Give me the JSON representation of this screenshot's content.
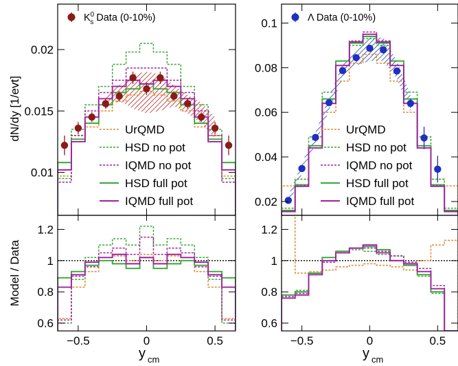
{
  "figure": {
    "ylabel_top": "dN/dy [1/evt]",
    "ylabel_bottom": "Model / Data",
    "xlabel_main": "y",
    "xlabel_sub": "cm",
    "colors": {
      "data_k0s": "#8b1a1a",
      "data_lambda": "#1f2fbf",
      "band_k0s": "#b22222",
      "band_lambda": "#1f3fa8",
      "urqmd": "#e08a2c",
      "hsd": "#35a835",
      "iqmd": "#a020a0"
    }
  },
  "legend": {
    "entries": [
      {
        "key": "urqmd",
        "label": "UrQMD",
        "dashed": true
      },
      {
        "key": "hsd_nopot",
        "label": "HSD no pot",
        "dashed": true
      },
      {
        "key": "iqmd_nopot",
        "label": "IQMD no pot",
        "dashed": true
      },
      {
        "key": "hsd_full",
        "label": "HSD full pot",
        "dashed": false
      },
      {
        "key": "iqmd_full",
        "label": "IQMD full pot",
        "dashed": false
      }
    ]
  },
  "chart_data": [
    {
      "type": "line",
      "panel": "K0s spectrum",
      "data_label_pre": "K",
      "data_label_sup": "0",
      "data_label_sub": "s",
      "data_label_post": " Data (0-10%)",
      "xlim": [
        -0.65,
        0.65
      ],
      "ylim": [
        0.0065,
        0.0237
      ],
      "ymax_drawn": 0.0237,
      "yticks": [
        0.01,
        0.015,
        0.02
      ],
      "ytick_labels": [
        "0.01",
        "0.015",
        "0.02"
      ],
      "xticks": [
        -0.5,
        0,
        0.5
      ],
      "xtick_labels": [
        "−0.5",
        "0",
        "0.5"
      ],
      "bin_edges": [
        -0.65,
        -0.55,
        -0.45,
        -0.35,
        -0.25,
        -0.15,
        -0.05,
        0.05,
        0.15,
        0.25,
        0.35,
        0.45,
        0.55,
        0.65
      ],
      "data_x": [
        -0.6,
        -0.5,
        -0.4,
        -0.3,
        -0.2,
        -0.1,
        0,
        0.1,
        0.2,
        0.3,
        0.4,
        0.5,
        0.6
      ],
      "data_y": [
        0.0122,
        0.0136,
        0.0145,
        0.0156,
        0.0162,
        0.0177,
        0.0168,
        0.0177,
        0.0162,
        0.0156,
        0.0145,
        0.0136,
        0.0122
      ],
      "data_err": [
        0.0008,
        0.0005,
        0.0004,
        0.0004,
        0.0004,
        0.0005,
        0.0005,
        0.0005,
        0.0004,
        0.0004,
        0.0004,
        0.0005,
        0.0008
      ],
      "band_x": [
        -0.3,
        -0.2,
        -0.1,
        0,
        0.1,
        0.2,
        0.3,
        0.4,
        0.5
      ],
      "band_lo": [
        0.0152,
        0.0158,
        0.0152,
        0.0148,
        0.015,
        0.0154,
        0.0148,
        0.014,
        0.0128
      ],
      "band_hi": [
        0.0163,
        0.0171,
        0.018,
        0.0182,
        0.018,
        0.0171,
        0.0163,
        0.0157,
        0.0145
      ],
      "series": [
        {
          "key": "urqmd",
          "values": [
            0.0097,
            0.013,
            0.0137,
            0.015,
            0.0158,
            0.0163,
            0.0166,
            0.0163,
            0.0158,
            0.015,
            0.0137,
            0.013,
            0.0097
          ]
        },
        {
          "key": "hsd_nopot",
          "values": [
            0.0095,
            0.0135,
            0.0155,
            0.017,
            0.0188,
            0.0198,
            0.0205,
            0.0198,
            0.0188,
            0.017,
            0.0155,
            0.0135,
            0.0095
          ]
        },
        {
          "key": "iqmd_nopot",
          "values": [
            0.0092,
            0.013,
            0.015,
            0.0165,
            0.0175,
            0.0185,
            0.0185,
            0.0185,
            0.0175,
            0.0165,
            0.015,
            0.013,
            0.0092
          ]
        },
        {
          "key": "hsd_full",
          "values": [
            0.0108,
            0.0127,
            0.014,
            0.0155,
            0.0165,
            0.0168,
            0.0172,
            0.0168,
            0.0165,
            0.0155,
            0.014,
            0.0127,
            0.0108
          ]
        },
        {
          "key": "iqmd_full",
          "values": [
            0.0102,
            0.0125,
            0.0145,
            0.016,
            0.017,
            0.0175,
            0.0172,
            0.0175,
            0.017,
            0.016,
            0.0145,
            0.0125,
            0.0102
          ]
        }
      ]
    },
    {
      "type": "line",
      "panel": "Lambda spectrum",
      "data_label_pre": "Λ",
      "data_label_sup": "",
      "data_label_sub": "",
      "data_label_post": " Data (0-10%)",
      "xlim": [
        -0.65,
        0.65
      ],
      "ylim": [
        0.0138,
        0.1085
      ],
      "ymax_drawn": 0.1085,
      "yticks": [
        0.02,
        0.04,
        0.06,
        0.08,
        0.1
      ],
      "ytick_labels": [
        "0.02",
        "0.04",
        "0.06",
        "0.08",
        "0.1"
      ],
      "xticks": [
        -0.5,
        0,
        0.5
      ],
      "xtick_labels": [
        "−0.5",
        "0",
        "0.5"
      ],
      "bin_edges": [
        -0.65,
        -0.55,
        -0.45,
        -0.35,
        -0.25,
        -0.15,
        -0.05,
        0.05,
        0.15,
        0.25,
        0.35,
        0.45,
        0.55,
        0.65
      ],
      "data_x": [
        -0.6,
        -0.5,
        -0.4,
        -0.3,
        -0.2,
        -0.1,
        0,
        0.1,
        0.2,
        0.3,
        0.4,
        0.5
      ],
      "data_y": [
        0.0205,
        0.0348,
        0.0487,
        0.0643,
        0.0787,
        0.0845,
        0.0887,
        0.088,
        0.0785,
        0.064,
        0.0485,
        0.0345
      ],
      "data_err": [
        0.0012,
        0.001,
        0.0012,
        0.0012,
        0.0013,
        0.0015,
        0.0015,
        0.0015,
        0.0013,
        0.002,
        0.005,
        0.006
      ],
      "band_x": [
        -0.6,
        -0.5,
        -0.4,
        -0.3,
        -0.2,
        -0.1,
        0,
        0.1,
        0.2,
        0.3
      ],
      "band_lo": [
        0.0185,
        0.0325,
        0.046,
        0.061,
        0.075,
        0.081,
        0.083,
        0.083,
        0.075,
        0.06
      ],
      "band_hi": [
        0.0225,
        0.037,
        0.051,
        0.067,
        0.0815,
        0.089,
        0.0935,
        0.0935,
        0.083,
        0.068
      ],
      "series": [
        {
          "key": "urqmd",
          "values": [
            0.027,
            0.03,
            0.045,
            0.06,
            0.074,
            0.082,
            0.086,
            0.082,
            0.074,
            0.06,
            0.045,
            0.03,
            0.027
          ]
        },
        {
          "key": "hsd_nopot",
          "values": [
            0.017,
            0.03,
            0.049,
            0.069,
            0.083,
            0.09,
            0.093,
            0.09,
            0.083,
            0.069,
            0.049,
            0.03,
            0.017
          ]
        },
        {
          "key": "iqmd_nopot",
          "values": [
            0.016,
            0.027,
            0.045,
            0.064,
            0.081,
            0.092,
            0.096,
            0.092,
            0.081,
            0.064,
            0.045,
            0.027,
            0.016
          ]
        },
        {
          "key": "hsd_full",
          "values": [
            0.016,
            0.0275,
            0.045,
            0.066,
            0.083,
            0.091,
            0.094,
            0.091,
            0.083,
            0.066,
            0.045,
            0.0275,
            0.016
          ]
        },
        {
          "key": "iqmd_full",
          "values": [
            0.0155,
            0.0268,
            0.044,
            0.064,
            0.081,
            0.0915,
            0.095,
            0.0915,
            0.081,
            0.064,
            0.044,
            0.0268,
            0.0155
          ]
        }
      ]
    },
    {
      "type": "line",
      "panel": "K0s ratio",
      "xlim": [
        -0.65,
        0.65
      ],
      "ylim": [
        0.55,
        1.29
      ],
      "ymax_drawn": 1.29,
      "yticks": [
        0.6,
        0.8,
        1,
        1.2
      ],
      "ytick_labels": [
        "0.6",
        "0.8",
        "1",
        "1.2"
      ],
      "xticks": [
        -0.5,
        0,
        0.5
      ],
      "xtick_labels": [
        "−0.5",
        "0",
        "0.5"
      ],
      "reference_line": 1,
      "bin_edges": [
        -0.65,
        -0.55,
        -0.45,
        -0.35,
        -0.25,
        -0.15,
        -0.05,
        0.05,
        0.15,
        0.25,
        0.35,
        0.45,
        0.55,
        0.65
      ],
      "series": [
        {
          "key": "urqmd",
          "values": [
            0.63,
            0.83,
            0.93,
            1.02,
            1.03,
            1.0,
            1.04,
            1.0,
            1.03,
            1.02,
            0.93,
            0.83,
            0.63
          ]
        },
        {
          "key": "hsd_nopot",
          "values": [
            0.6,
            0.88,
            1.02,
            1.1,
            1.14,
            1.1,
            1.22,
            1.1,
            1.14,
            1.1,
            1.02,
            0.88,
            0.6
          ]
        },
        {
          "key": "iqmd_nopot",
          "values": [
            0.62,
            0.9,
            0.96,
            1.05,
            1.08,
            1.04,
            1.15,
            1.04,
            1.08,
            1.05,
            0.96,
            0.9,
            0.62
          ]
        },
        {
          "key": "hsd_full",
          "values": [
            0.89,
            0.93,
            0.97,
            1.0,
            0.98,
            0.95,
            1.02,
            0.95,
            0.98,
            1.0,
            0.97,
            0.93,
            0.89
          ]
        },
        {
          "key": "iqmd_full",
          "values": [
            0.83,
            0.91,
            0.99,
            1.02,
            1.04,
            0.98,
            1.02,
            0.98,
            1.04,
            1.02,
            0.99,
            0.91,
            0.83
          ]
        }
      ]
    },
    {
      "type": "line",
      "panel": "Lambda ratio",
      "xlim": [
        -0.65,
        0.65
      ],
      "ylim": [
        0.55,
        1.29
      ],
      "ymax_drawn": 1.29,
      "yticks": [
        0.6,
        0.8,
        1,
        1.2
      ],
      "ytick_labels": [
        "0.6",
        "0.8",
        "1",
        "1.2"
      ],
      "xticks": [
        -0.5,
        0,
        0.5
      ],
      "xtick_labels": [
        "−0.5",
        "0",
        "0.5"
      ],
      "reference_line": 1,
      "bin_edges": [
        -0.65,
        -0.55,
        -0.45,
        -0.35,
        -0.25,
        -0.15,
        -0.05,
        0.05,
        0.15,
        0.25,
        0.35,
        0.45,
        0.55,
        0.65
      ],
      "series": [
        {
          "key": "urqmd",
          "values": [
            1.29,
            0.92,
            0.93,
            0.94,
            0.96,
            0.97,
            0.98,
            0.97,
            0.96,
            0.94,
            1.0,
            1.1,
            1.13
          ]
        },
        {
          "key": "hsd_nopot",
          "values": [
            0.78,
            0.81,
            0.92,
            1.0,
            1.05,
            1.07,
            1.06,
            1.04,
            1.03,
            0.97,
            0.9,
            0.79,
            0.55
          ]
        },
        {
          "key": "iqmd_nopot",
          "values": [
            0.77,
            0.79,
            0.91,
            0.99,
            1.05,
            1.08,
            1.08,
            1.06,
            1.03,
            0.99,
            0.95,
            0.84,
            0.55
          ]
        },
        {
          "key": "hsd_full",
          "values": [
            0.78,
            0.8,
            0.92,
            1.02,
            1.06,
            1.08,
            1.09,
            1.07,
            1.0,
            0.97,
            0.91,
            0.8,
            0.55
          ]
        },
        {
          "key": "iqmd_full",
          "values": [
            0.76,
            0.78,
            0.91,
            1.0,
            1.05,
            1.08,
            1.1,
            1.05,
            1.0,
            0.98,
            0.93,
            0.82,
            0.55
          ]
        }
      ]
    }
  ]
}
